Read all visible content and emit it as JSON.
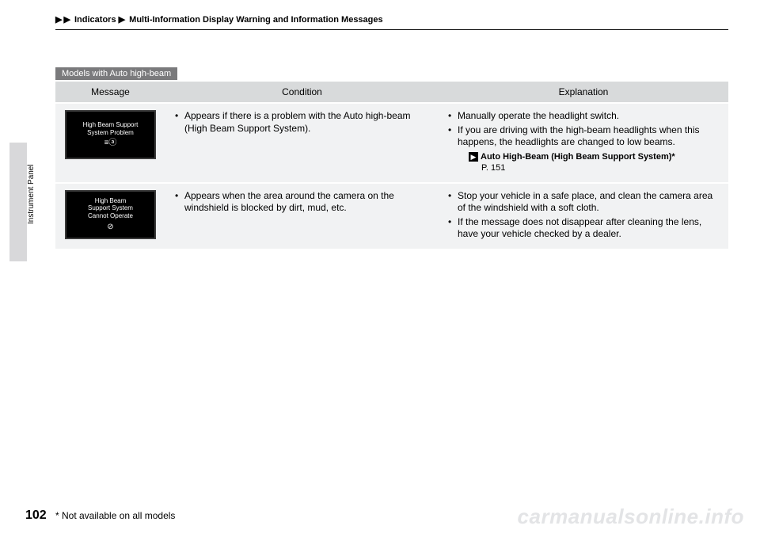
{
  "breadcrumb": {
    "sep": "▶",
    "level1": "Indicators",
    "level2": "Multi-Information Display Warning and Information Messages"
  },
  "sidetab": {
    "label": "Instrument Panel"
  },
  "section_tag": "Models with Auto high-beam",
  "table": {
    "headers": {
      "message": "Message",
      "condition": "Condition",
      "explanation": "Explanation"
    },
    "rows": [
      {
        "display_lines": [
          "High Beam Support",
          "System Problem"
        ],
        "display_icon": "≡ⓐ",
        "condition": [
          "Appears if there is a problem with the Auto high-beam (High Beam Support System)."
        ],
        "explanation": [
          "Manually operate the headlight switch.",
          "If you are driving with the high-beam headlights when this happens, the headlights are changed to low beams."
        ],
        "xref": {
          "label": "Auto High-Beam (High Beam Support System)*",
          "page": "P. 151"
        }
      },
      {
        "display_lines": [
          "High Beam",
          "Support System",
          "Cannot Operate"
        ],
        "display_icon": "⊘",
        "condition": [
          "Appears when the area around the camera on the windshield is blocked by dirt, mud, etc."
        ],
        "explanation": [
          "Stop your vehicle in a safe place, and clean the camera area of the windshield with a soft cloth.",
          "If the message does not disappear after cleaning the lens, have your vehicle checked by a dealer."
        ]
      }
    ]
  },
  "footnote": "* Not available on all models",
  "page_number": "102",
  "watermark": "carmanualsonline.info"
}
